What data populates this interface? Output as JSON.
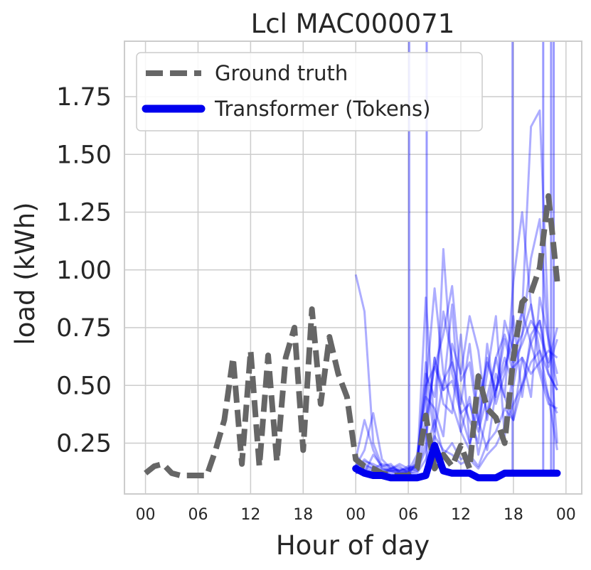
{
  "chart_data": {
    "type": "line",
    "title": "Lcl MAC000071",
    "xlabel": "Hour of day",
    "ylabel": "load (kWh)",
    "x_tick_labels": [
      "00",
      "06",
      "12",
      "18",
      "00",
      "06",
      "12",
      "18",
      "00"
    ],
    "x_tick_positions": [
      0,
      6,
      12,
      18,
      24,
      30,
      36,
      42,
      48
    ],
    "xlim": [
      -2.4,
      49.8
    ],
    "y_ticks": [
      0.25,
      0.5,
      0.75,
      1.0,
      1.25,
      1.5,
      1.75
    ],
    "y_tick_labels": [
      "0.25",
      "0.50",
      "0.75",
      "1.00",
      "1.25",
      "1.50",
      "1.75"
    ],
    "ylim": [
      0.03,
      1.99
    ],
    "grid": true,
    "legend_position": "top-left",
    "colors": {
      "ground_truth": "#666666",
      "transformer": "#0000ee",
      "samples": "#0000ff",
      "grid": "#cccccc",
      "spine": "#cccccc"
    },
    "series": [
      {
        "name": "Ground truth",
        "style": "dashed",
        "x": [
          0,
          1,
          2,
          3,
          4,
          5,
          6,
          7,
          8,
          9,
          10,
          11,
          12,
          13,
          14,
          15,
          16,
          17,
          18,
          19,
          20,
          21,
          22,
          23,
          24,
          25,
          26,
          27,
          28,
          29,
          30,
          31,
          32,
          33,
          34,
          35,
          36,
          37,
          38,
          39,
          40,
          41,
          42,
          43,
          44,
          45,
          46,
          47
        ],
        "y": [
          0.12,
          0.15,
          0.16,
          0.12,
          0.11,
          0.11,
          0.11,
          0.11,
          0.22,
          0.35,
          0.62,
          0.16,
          0.65,
          0.15,
          0.63,
          0.17,
          0.62,
          0.75,
          0.22,
          0.83,
          0.42,
          0.71,
          0.55,
          0.45,
          0.18,
          0.15,
          0.14,
          0.12,
          0.11,
          0.11,
          0.11,
          0.14,
          0.37,
          0.14,
          0.2,
          0.15,
          0.24,
          0.14,
          0.54,
          0.4,
          0.36,
          0.25,
          0.62,
          0.86,
          0.9,
          1.01,
          1.32,
          0.95
        ]
      },
      {
        "name": "Transformer (Tokens)",
        "style": "solid",
        "x": [
          24,
          25,
          26,
          27,
          28,
          29,
          30,
          31,
          32,
          33,
          34,
          35,
          36,
          37,
          38,
          39,
          40,
          41,
          42,
          43,
          44,
          45,
          46,
          47
        ],
        "y": [
          0.14,
          0.12,
          0.11,
          0.11,
          0.1,
          0.1,
          0.1,
          0.1,
          0.11,
          0.24,
          0.13,
          0.12,
          0.12,
          0.12,
          0.1,
          0.1,
          0.1,
          0.12,
          0.12,
          0.12,
          0.12,
          0.12,
          0.12,
          0.12
        ]
      }
    ],
    "sample_series": [
      {
        "x": [
          24,
          25,
          26,
          27,
          28,
          29,
          30,
          31,
          32,
          33,
          34,
          35,
          36,
          37,
          38,
          39,
          40,
          41,
          42,
          43,
          44,
          45,
          46,
          47
        ],
        "y": [
          0.98,
          0.82,
          0.25,
          0.15,
          0.14,
          0.13,
          0.14,
          0.16,
          0.55,
          0.45,
          0.82,
          0.62,
          0.38,
          0.25,
          0.35,
          0.62,
          0.45,
          0.78,
          0.65,
          0.72,
          0.85,
          0.58,
          0.45,
          0.38
        ]
      },
      {
        "x": [
          24,
          25,
          26,
          27,
          28,
          29,
          30,
          31,
          32,
          33,
          34,
          35,
          36,
          37,
          38,
          39,
          40,
          41,
          42,
          43,
          44,
          45,
          46,
          47
        ],
        "y": [
          0.18,
          0.35,
          0.22,
          0.14,
          0.13,
          0.12,
          0.13,
          0.2,
          0.48,
          0.92,
          0.55,
          0.42,
          0.3,
          0.22,
          0.55,
          0.38,
          0.62,
          0.45,
          0.95,
          1.25,
          0.85,
          0.65,
          0.55,
          0.48
        ]
      },
      {
        "x": [
          24,
          25,
          26,
          27,
          28,
          29,
          30,
          31,
          32,
          33,
          34,
          35,
          36,
          37,
          38,
          39,
          40,
          41,
          42,
          43,
          44,
          45,
          46,
          47
        ],
        "y": [
          0.15,
          0.22,
          0.38,
          0.18,
          0.14,
          0.13,
          0.14,
          0.15,
          0.6,
          0.25,
          1.09,
          0.55,
          0.42,
          0.68,
          0.35,
          0.22,
          0.48,
          0.7,
          0.55,
          0.82,
          1.62,
          1.69,
          0.75,
          0.25
        ]
      },
      {
        "x": [
          24,
          25,
          26,
          27,
          28,
          29,
          30,
          31,
          32,
          33,
          34,
          35,
          36,
          37,
          38,
          39,
          40,
          41,
          42,
          43,
          44,
          45,
          46,
          47
        ],
        "y": [
          0.16,
          0.12,
          0.2,
          0.15,
          0.16,
          0.12,
          0.11,
          0.18,
          0.35,
          0.58,
          0.72,
          0.93,
          0.52,
          0.6,
          0.33,
          0.55,
          0.8,
          0.28,
          0.58,
          0.62,
          0.45,
          0.88,
          0.7,
          0.55
        ]
      },
      {
        "x": [
          24,
          25,
          26,
          27,
          28,
          29,
          30,
          31,
          32,
          33,
          34,
          35,
          36,
          37,
          38,
          39,
          40,
          41,
          42,
          43,
          44,
          45,
          46,
          47
        ],
        "y": [
          0.14,
          0.18,
          0.15,
          0.13,
          0.14,
          0.15,
          0.12,
          0.13,
          0.25,
          0.62,
          0.48,
          0.85,
          0.3,
          0.45,
          0.2,
          0.38,
          0.48,
          0.62,
          0.5,
          0.72,
          1.05,
          1.22,
          0.68,
          0.5
        ]
      },
      {
        "x": [
          24,
          25,
          26,
          27,
          28,
          29,
          30,
          31,
          32,
          33,
          34,
          35,
          36,
          37,
          38,
          39,
          40,
          41,
          42,
          43,
          44,
          45,
          46,
          47
        ],
        "y": [
          0.15,
          0.17,
          0.16,
          0.14,
          0.13,
          0.13,
          0.15,
          0.14,
          0.88,
          0.3,
          0.52,
          0.6,
          0.45,
          0.35,
          0.25,
          0.68,
          0.42,
          0.55,
          0.8,
          0.45,
          0.72,
          0.78,
          0.58,
          0.7
        ]
      },
      {
        "x": [
          24,
          25,
          26,
          27,
          28,
          29,
          30,
          31,
          32,
          33,
          34,
          35,
          36,
          37,
          38,
          39,
          40,
          41,
          42,
          43,
          44,
          45,
          46,
          47
        ],
        "y": [
          0.2,
          0.15,
          0.14,
          0.16,
          0.15,
          0.13,
          0.12,
          0.16,
          0.45,
          0.4,
          0.28,
          0.68,
          0.55,
          0.8,
          0.65,
          0.35,
          0.55,
          0.45,
          0.35,
          0.62,
          0.55,
          0.6,
          0.65,
          0.62
        ]
      },
      {
        "x": [
          24,
          25,
          26,
          27,
          28,
          29,
          30,
          31,
          32,
          33,
          34,
          35,
          36,
          37,
          38,
          39,
          40,
          41,
          42,
          43,
          44,
          45,
          46,
          47
        ],
        "y": [
          0.12,
          0.14,
          0.13,
          0.12,
          0.14,
          0.16,
          0.14,
          0.13,
          0.22,
          0.35,
          0.2,
          0.25,
          0.18,
          0.2,
          0.15,
          0.25,
          0.3,
          0.4,
          0.35,
          0.5,
          0.68,
          0.78,
          0.55,
          0.48
        ]
      },
      {
        "x": [
          24,
          25,
          26,
          27,
          28,
          29,
          30,
          31,
          32,
          33,
          34,
          35,
          36,
          37,
          38,
          39,
          40,
          41,
          42,
          43,
          44,
          45,
          46,
          47
        ],
        "y": [
          0.14,
          0.13,
          0.12,
          0.12,
          0.13,
          0.12,
          0.13,
          0.14,
          0.3,
          0.62,
          0.42,
          0.38,
          0.72,
          0.25,
          0.42,
          0.6,
          0.48,
          0.58,
          0.7,
          0.82,
          0.68,
          0.55,
          0.42,
          0.4
        ]
      },
      {
        "x": [
          24,
          25,
          26,
          27,
          28,
          29,
          30,
          31,
          32,
          33,
          34,
          35,
          36,
          37,
          38,
          39,
          40,
          41,
          42,
          43,
          44,
          45,
          46,
          47
        ],
        "y": [
          0.12,
          0.13,
          0.12,
          0.11,
          0.12,
          0.12,
          0.12,
          0.12,
          0.18,
          0.28,
          0.22,
          0.2,
          0.16,
          0.18,
          0.14,
          0.2,
          0.24,
          0.32,
          0.42,
          0.5,
          0.6,
          0.65,
          0.45,
          0.22
        ]
      },
      {
        "x": [
          24,
          25,
          26,
          27,
          28,
          29,
          30,
          31,
          32,
          33,
          34,
          35,
          36,
          37,
          38,
          39,
          40,
          41,
          42,
          43,
          44,
          45,
          46,
          47
        ],
        "y": [
          0.13,
          0.16,
          0.14,
          0.12,
          0.13,
          0.14,
          0.13,
          0.15,
          0.5,
          0.58,
          0.48,
          0.52,
          0.38,
          0.42,
          0.3,
          0.45,
          0.62,
          0.72,
          0.6,
          0.68,
          0.78,
          0.72,
          0.6,
          0.75
        ]
      }
    ],
    "spike_lines_x": [
      30.1,
      32.1,
      41.9,
      45.4,
      46.3,
      46.6
    ]
  },
  "legend": {
    "ground_truth": "Ground truth",
    "transformer": "Transformer (Tokens)"
  }
}
